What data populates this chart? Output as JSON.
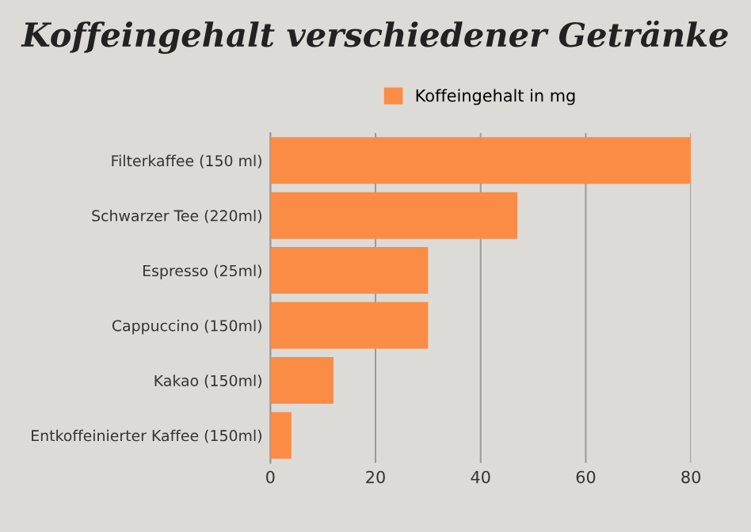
{
  "chart_data": {
    "type": "bar",
    "orientation": "horizontal",
    "title": "Koffeingehalt verschiedener Getränke",
    "categories": [
      "Filterkaffee (150 ml)",
      "Schwarzer Tee (220ml)",
      "Espresso (25ml)",
      "Cappuccino (150ml)",
      "Kakao (150ml)",
      "Entkoffeinierter Kaffee (150ml)"
    ],
    "series": [
      {
        "name": "Koffeingehalt in mg",
        "color": "#fb8c46",
        "values": [
          80,
          47,
          30,
          30,
          12,
          4
        ]
      }
    ],
    "xlim": [
      0,
      80
    ],
    "xticks": [
      0,
      20,
      40,
      60,
      80
    ],
    "grid": "x",
    "legend": "top"
  }
}
